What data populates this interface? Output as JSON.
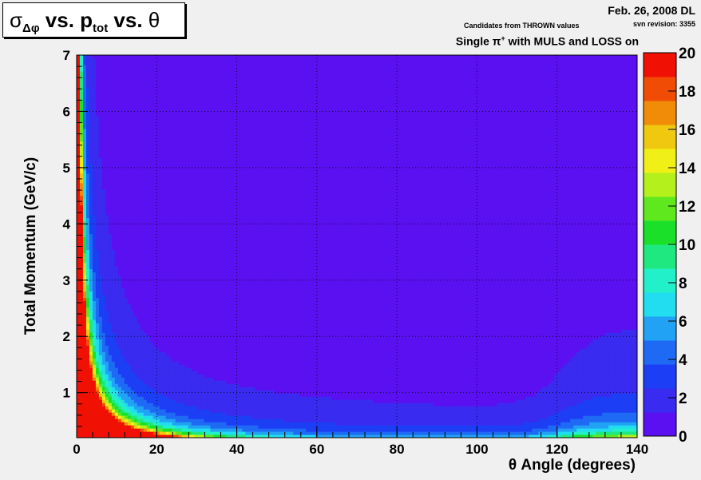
{
  "header": {
    "date": "Feb. 26, 2008 DL",
    "candidates": "Candidates from THROWN values",
    "svn": "svn revision: 3355",
    "config_prefix": "Single π",
    "config_sup": "+",
    "config_suffix": " with MULS and LOSS on"
  },
  "chart_data": {
    "type": "heatmap",
    "title": {
      "sigma": "σ",
      "sigma_sub": "Δφ",
      "mid": " vs. p",
      "mid_sub": "tot",
      "end_text": " vs. ",
      "theta": "θ"
    },
    "xlabel": "θ Angle (degrees)",
    "ylabel": "Total Momentum (GeV/c)",
    "xlim": [
      0,
      140
    ],
    "ylim": [
      0.2,
      7
    ],
    "zlim": [
      0,
      20
    ],
    "x_ticks": [
      "0",
      "20",
      "40",
      "60",
      "80",
      "100",
      "120",
      "140"
    ],
    "y_ticks": [
      "1",
      "2",
      "3",
      "4",
      "5",
      "6",
      "7"
    ],
    "z_ticks": [
      "0",
      "2",
      "4",
      "6",
      "8",
      "10",
      "12",
      "14",
      "16",
      "18",
      "20"
    ],
    "grid": true,
    "palette": [
      "#5a10f0",
      "#3a2bf0",
      "#1c3ef5",
      "#1f6af5",
      "#22a2f5",
      "#22dcf0",
      "#22f0c8",
      "#20e880",
      "#1ae02a",
      "#60e81e",
      "#b4f01c",
      "#f0f016",
      "#f0c810",
      "#f08c08",
      "#f04c06",
      "#f01004"
    ]
  }
}
